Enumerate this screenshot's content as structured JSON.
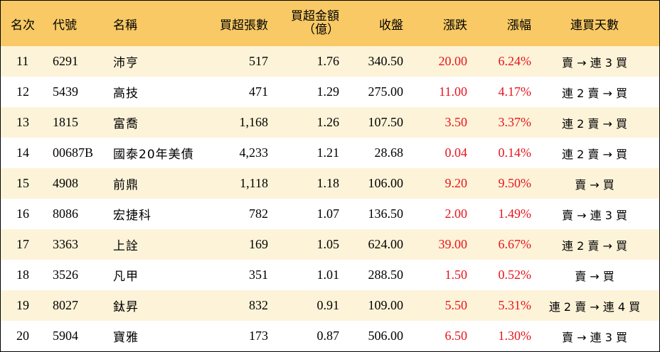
{
  "header": {
    "rank": "名次",
    "code": "代號",
    "name": "名稱",
    "net_lots": "買超張數",
    "amount_line1": "買超金額",
    "amount_line2": "（億）",
    "close": "收盤",
    "change": "漲跌",
    "pct": "漲幅",
    "streak": "連買天數"
  },
  "rows": [
    {
      "rank": "11",
      "code": "6291",
      "name": "沛亨",
      "net_lots": "517",
      "amount": "1.76",
      "close": "340.50",
      "change": "20.00",
      "pct": "6.24%",
      "streak": "賣 → 連 3 買"
    },
    {
      "rank": "12",
      "code": "5439",
      "name": "高技",
      "net_lots": "471",
      "amount": "1.29",
      "close": "275.00",
      "change": "11.00",
      "pct": "4.17%",
      "streak": "連 2 賣 → 買"
    },
    {
      "rank": "13",
      "code": "1815",
      "name": "富喬",
      "net_lots": "1,168",
      "amount": "1.26",
      "close": "107.50",
      "change": "3.50",
      "pct": "3.37%",
      "streak": "連 2 賣 → 買"
    },
    {
      "rank": "14",
      "code": "00687B",
      "name": "國泰20年美債",
      "net_lots": "4,233",
      "amount": "1.21",
      "close": "28.68",
      "change": "0.04",
      "pct": "0.14%",
      "streak": "連 2 賣 → 買"
    },
    {
      "rank": "15",
      "code": "4908",
      "name": "前鼎",
      "net_lots": "1,118",
      "amount": "1.18",
      "close": "106.00",
      "change": "9.20",
      "pct": "9.50%",
      "streak": "賣 → 買"
    },
    {
      "rank": "16",
      "code": "8086",
      "name": "宏捷科",
      "net_lots": "782",
      "amount": "1.07",
      "close": "136.50",
      "change": "2.00",
      "pct": "1.49%",
      "streak": "賣 → 連 3 買"
    },
    {
      "rank": "17",
      "code": "3363",
      "name": "上詮",
      "net_lots": "169",
      "amount": "1.05",
      "close": "624.00",
      "change": "39.00",
      "pct": "6.67%",
      "streak": "連 2 賣 → 買"
    },
    {
      "rank": "18",
      "code": "3526",
      "name": "凡甲",
      "net_lots": "351",
      "amount": "1.01",
      "close": "288.50",
      "change": "1.50",
      "pct": "0.52%",
      "streak": "賣 → 買"
    },
    {
      "rank": "19",
      "code": "8027",
      "name": "鈦昇",
      "net_lots": "832",
      "amount": "0.91",
      "close": "109.00",
      "change": "5.50",
      "pct": "5.31%",
      "streak": "連 2 賣 → 連 4 買"
    },
    {
      "rank": "20",
      "code": "5904",
      "name": "寶雅",
      "net_lots": "173",
      "amount": "0.87",
      "close": "506.00",
      "change": "6.50",
      "pct": "1.30%",
      "streak": "賣 → 連 3 買"
    }
  ],
  "colors": {
    "header_bg": "#f8c964",
    "odd_row_bg": "#fdf3d8",
    "even_row_bg": "#ffffff",
    "up": "#e8141e"
  }
}
